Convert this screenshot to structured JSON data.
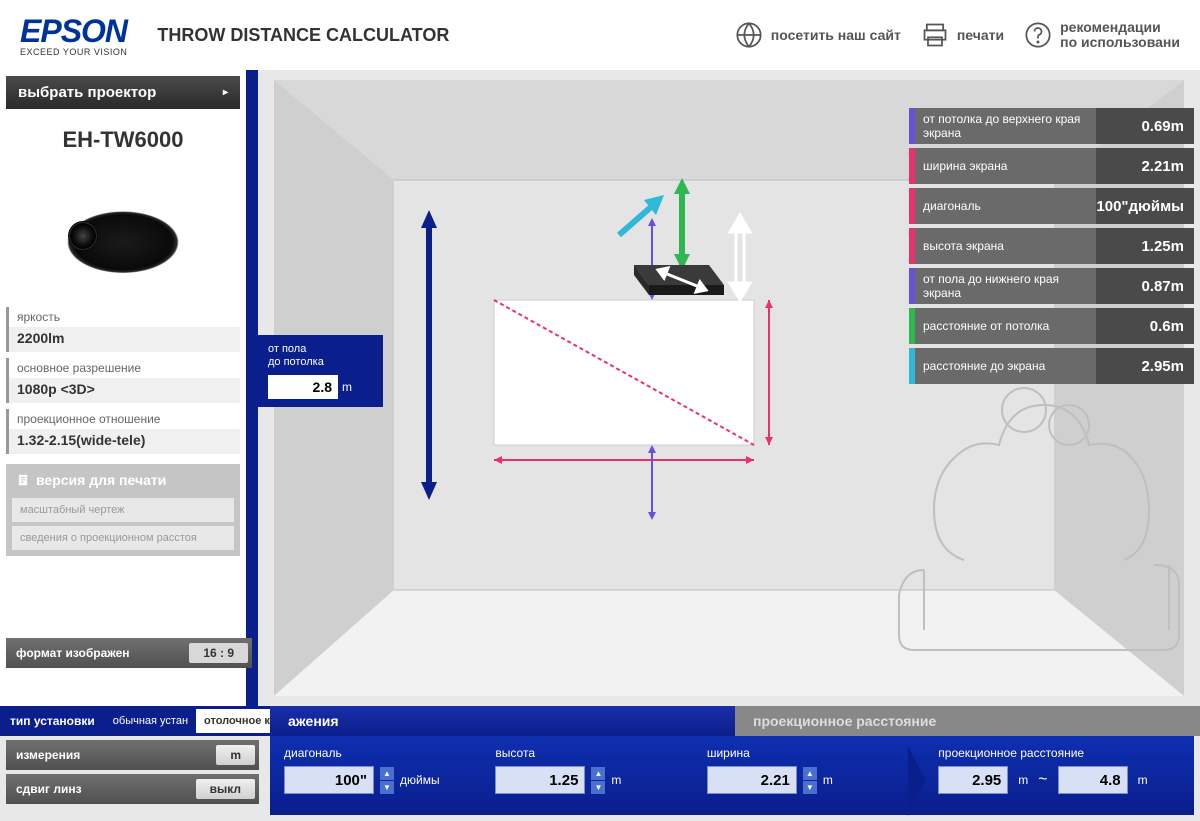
{
  "header": {
    "logo": "EPSON",
    "tagline": "EXCEED YOUR VISION",
    "title": "THROW DISTANCE CALCULATOR",
    "visit": "посетить наш сайт",
    "print": "печати",
    "help1": "рекомендации",
    "help2": "по использовани"
  },
  "sidebar": {
    "selector": "выбрать проектор",
    "model": "EH-TW6000",
    "specs": [
      {
        "label": "яркость",
        "value": "2200lm"
      },
      {
        "label": "основное разрешение",
        "value": "1080p  <3D>"
      },
      {
        "label": "проекционное отношение",
        "value": "1.32-2.15(wide-tele)"
      }
    ],
    "printHeader": "версия для печати",
    "printBtns": [
      "масштабный чертеж",
      "сведения о проекционном расстоя"
    ]
  },
  "options": {
    "format": {
      "label": "формат изображен",
      "value": "16 : 9"
    },
    "install": {
      "label": "тип установки",
      "opt1": "обычная устан",
      "opt2": "отолочное кр"
    },
    "units": {
      "label": "измерения",
      "value": "m"
    },
    "shift": {
      "label": "сдвиг линз",
      "value": "выкл"
    }
  },
  "floorInput": {
    "label1": "от пола",
    "label2": "до потолка",
    "value": "2.8",
    "unit": "m"
  },
  "measurements": [
    {
      "color": "#6a4fd8",
      "label": "от потолка до верхнего края экрана",
      "value": "0.69m"
    },
    {
      "color": "#e8316f",
      "label": "ширина экрана",
      "value": "2.21m"
    },
    {
      "color": "#e8316f",
      "label": "диагональ",
      "value": "100\"дюймы"
    },
    {
      "color": "#e8316f",
      "label": "высота экрана",
      "value": "1.25m"
    },
    {
      "color": "#6a4fd8",
      "label": "от пола до нижнего края экрана",
      "value": "0.87m"
    },
    {
      "color": "#2fb84f",
      "label": "расстояние от потолка",
      "value": "0.6m"
    },
    {
      "color": "#2fb8d8",
      "label": "расстояние до экрана",
      "value": "2.95m"
    }
  ],
  "tabs": {
    "dims": "ажения",
    "dist": "проекционное расстояние"
  },
  "dims": {
    "diagonal": {
      "label": "диагональ",
      "value": "100\"",
      "unit": "дюймы"
    },
    "height": {
      "label": "высота",
      "value": "1.25",
      "unit": "m"
    },
    "width": {
      "label": "ширина",
      "value": "2.21",
      "unit": "m"
    },
    "proj": {
      "label": "проекционное расстояние",
      "min": "2.95",
      "sep": "~",
      "max": "4.8",
      "unit": "m"
    }
  }
}
